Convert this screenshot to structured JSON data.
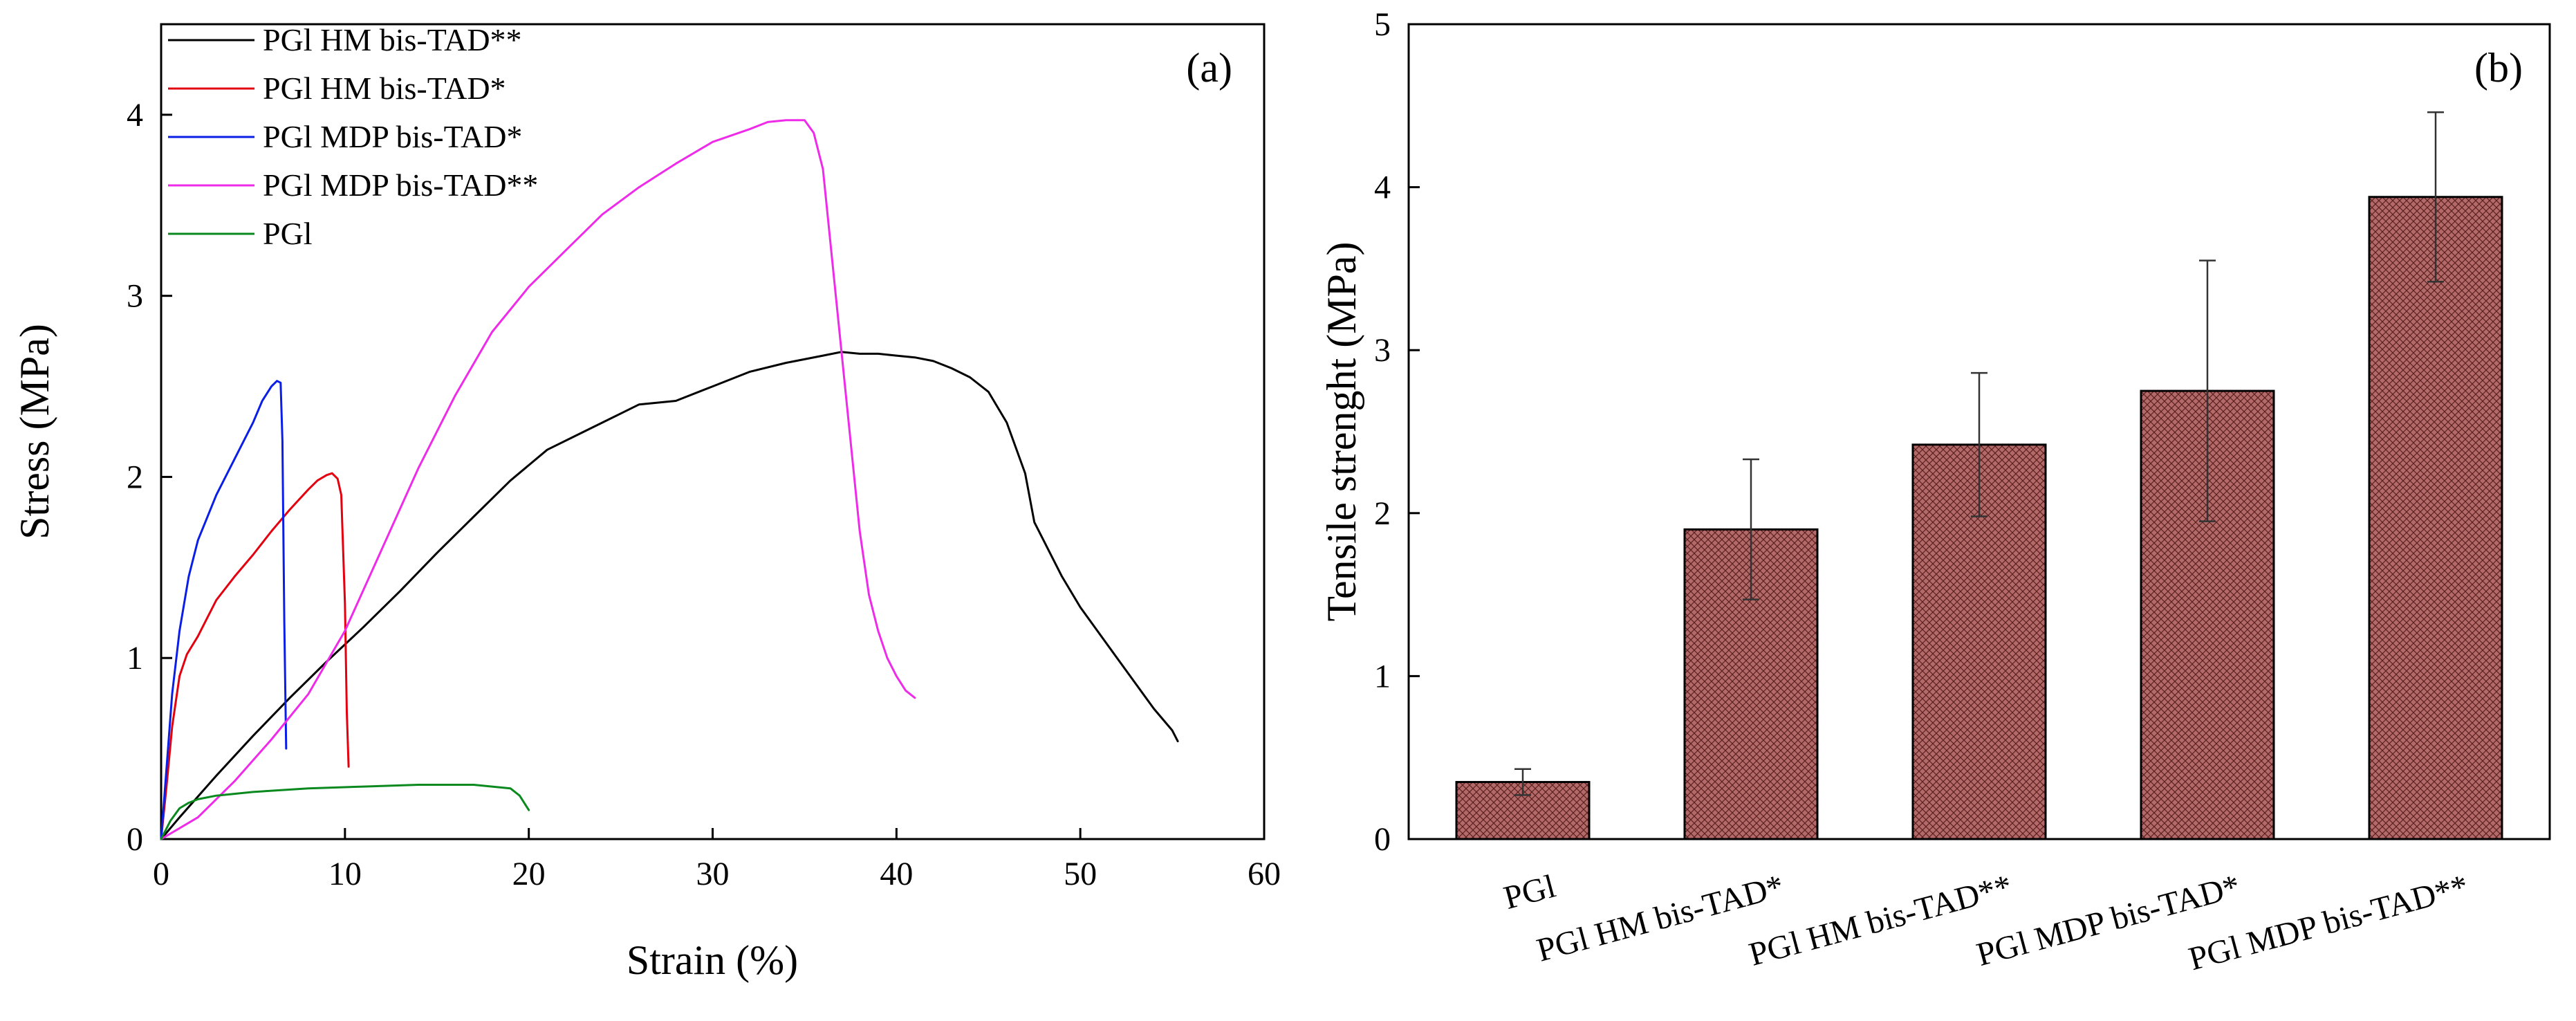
{
  "chart_data": [
    {
      "panel_label": "(a)",
      "type": "line",
      "xlabel": "Strain (%)",
      "ylabel": "Stress (MPa)",
      "xlim": [
        0,
        60
      ],
      "ylim": [
        0,
        4.5
      ],
      "x_ticks": [
        0,
        10,
        20,
        30,
        40,
        50,
        60
      ],
      "y_ticks": [
        0,
        1,
        2,
        3,
        4
      ],
      "legend_position": "top-left",
      "series": [
        {
          "name": "PGl HM bis-TAD**",
          "color": "#000000",
          "x": [
            0,
            1,
            3,
            5,
            7,
            9,
            11,
            13,
            15,
            17,
            19,
            21,
            23,
            25,
            26,
            28,
            30,
            32,
            34,
            36,
            37,
            38,
            39,
            40,
            41,
            42,
            43,
            44,
            45,
            46,
            47,
            47.5,
            48,
            49,
            50,
            51,
            52,
            53,
            54,
            55,
            55.3
          ],
          "y": [
            0,
            0.12,
            0.35,
            0.57,
            0.78,
            0.98,
            1.17,
            1.37,
            1.58,
            1.78,
            1.98,
            2.15,
            2.25,
            2.35,
            2.4,
            2.42,
            2.5,
            2.58,
            2.63,
            2.67,
            2.69,
            2.68,
            2.68,
            2.67,
            2.66,
            2.64,
            2.6,
            2.55,
            2.47,
            2.3,
            2.02,
            1.75,
            1.65,
            1.45,
            1.28,
            1.14,
            1.0,
            0.86,
            0.72,
            0.6,
            0.54
          ]
        },
        {
          "name": "PGl HM bis-TAD*",
          "color": "#e3000f",
          "x": [
            0,
            0.3,
            0.6,
            1,
            1.4,
            2,
            2.5,
            3,
            4,
            5,
            6,
            7,
            8,
            8.5,
            9,
            9.3,
            9.6,
            9.8,
            10,
            10.1,
            10.2
          ],
          "y": [
            0,
            0.3,
            0.62,
            0.9,
            1.02,
            1.12,
            1.22,
            1.32,
            1.45,
            1.57,
            1.7,
            1.82,
            1.93,
            1.98,
            2.01,
            2.02,
            1.99,
            1.9,
            1.3,
            0.7,
            0.4
          ]
        },
        {
          "name": "PGl MDP bis-TAD*",
          "color": "#0a1ee6",
          "x": [
            0,
            0.3,
            0.6,
            1,
            1.5,
            2,
            3,
            4,
            5,
            5.5,
            6,
            6.3,
            6.5,
            6.6,
            6.7,
            6.8
          ],
          "y": [
            0,
            0.4,
            0.8,
            1.15,
            1.45,
            1.65,
            1.9,
            2.1,
            2.3,
            2.42,
            2.5,
            2.53,
            2.52,
            2.2,
            1.2,
            0.5
          ]
        },
        {
          "name": "PGl MDP bis-TAD**",
          "color": "#ee2be8",
          "x": [
            0,
            2,
            4,
            6,
            8,
            10,
            12,
            14,
            16,
            18,
            20,
            22,
            24,
            26,
            28,
            30,
            32,
            33,
            34,
            35,
            35.5,
            36,
            36.5,
            37,
            37.5,
            38,
            38.5,
            39,
            39.5,
            40,
            40.5,
            41
          ],
          "y": [
            0,
            0.12,
            0.32,
            0.55,
            0.8,
            1.15,
            1.6,
            2.05,
            2.45,
            2.8,
            3.05,
            3.25,
            3.45,
            3.6,
            3.73,
            3.85,
            3.92,
            3.96,
            3.97,
            3.97,
            3.9,
            3.7,
            3.2,
            2.7,
            2.2,
            1.7,
            1.35,
            1.15,
            1.0,
            0.9,
            0.82,
            0.78
          ]
        },
        {
          "name": "PGl",
          "color": "#0a8a1e",
          "x": [
            0,
            0.5,
            1,
            1.5,
            2,
            3,
            5,
            8,
            11,
            14,
            16,
            17,
            18,
            19,
            19.5,
            20
          ],
          "y": [
            0,
            0.1,
            0.17,
            0.2,
            0.22,
            0.24,
            0.26,
            0.28,
            0.29,
            0.3,
            0.3,
            0.3,
            0.29,
            0.28,
            0.24,
            0.16
          ]
        }
      ]
    },
    {
      "panel_label": "(b)",
      "type": "bar",
      "xlabel": "",
      "ylabel": "Tensile strenght (MPa)",
      "ylim": [
        0,
        5
      ],
      "y_ticks": [
        0,
        1,
        2,
        3,
        4,
        5
      ],
      "categories": [
        "PGl",
        "PGl HM bis-TAD*",
        "PGl HM bis-TAD**",
        "PGl MDP bis-TAD*",
        "PGl MDP bis-TAD**"
      ],
      "values": [
        0.35,
        1.9,
        2.42,
        2.75,
        3.94
      ],
      "errors": [
        0.08,
        0.43,
        0.44,
        0.8,
        0.52
      ],
      "bar_color": "#b56a6a"
    }
  ]
}
